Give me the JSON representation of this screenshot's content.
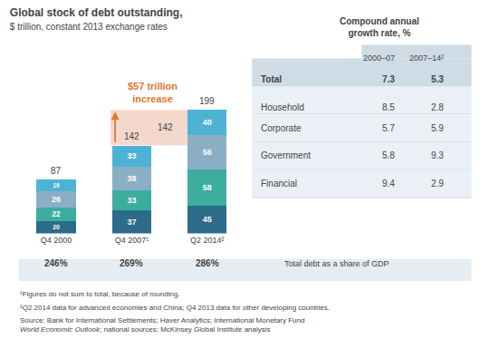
{
  "chart_data": {
    "type": "bar",
    "stacked": true,
    "data_labels": true,
    "tick_labels": "x",
    "grid": false,
    "title": "Global stock of debt outstanding,",
    "subtitle": "$ trillion, constant 2013 exchange rates",
    "categories": [
      "Q4 2000",
      "Q4 2007¹",
      "Q2 2014²"
    ],
    "series": [
      {
        "name": "Financial",
        "color": "#2d6b8a",
        "values": [
          20,
          37,
          45
        ]
      },
      {
        "name": "Government",
        "color": "#3dada0",
        "values": [
          22,
          33,
          58
        ]
      },
      {
        "name": "Corporate",
        "color": "#8aafc4",
        "values": [
          26,
          38,
          56
        ]
      },
      {
        "name": "Household",
        "color": "#4db3d4",
        "values": [
          19,
          33,
          40
        ]
      }
    ],
    "totals": [
      87,
      142,
      199
    ],
    "ylim": [
      0,
      230
    ],
    "highlight": {
      "from": 142,
      "to": 199,
      "color": "#f5d8cc"
    },
    "annotation": {
      "text": [
        "$57 trillion",
        "increase"
      ],
      "color": "#e07830"
    },
    "gdp_share": {
      "label": "Total debt as a share of GDP",
      "values": [
        246,
        269,
        286
      ],
      "value_labels": [
        "246%",
        "269%",
        "286%"
      ],
      "color": "#e5ecf2"
    },
    "table": {
      "title": [
        "Compound annual",
        "growth rate, %"
      ],
      "columns": [
        "2000–07",
        "2007–14²"
      ],
      "rows": [
        {
          "label": "Total",
          "values": [
            7.3,
            5.3
          ]
        },
        {
          "label": "Household",
          "values": [
            8.5,
            2.8
          ]
        },
        {
          "label": "Corporate",
          "values": [
            5.7,
            5.9
          ]
        },
        {
          "label": "Government",
          "values": [
            5.8,
            9.3
          ]
        },
        {
          "label": "Financial",
          "values": [
            9.4,
            2.9
          ]
        }
      ],
      "header_color": "#cfdce6",
      "row_color": "#eaf0f5"
    },
    "footnotes": [
      "¹Figures do not sum to total, because of rounding.",
      "²Q2 2014 data for advanced economies and China; Q4 2013 data for other developing countries."
    ],
    "source": [
      "Source: Bank for International Settlements; Haver Analytics; International Monetary Fund ",
      "World Economic Outlook",
      "; national sources; McKinsey Global Institute analysis"
    ]
  }
}
